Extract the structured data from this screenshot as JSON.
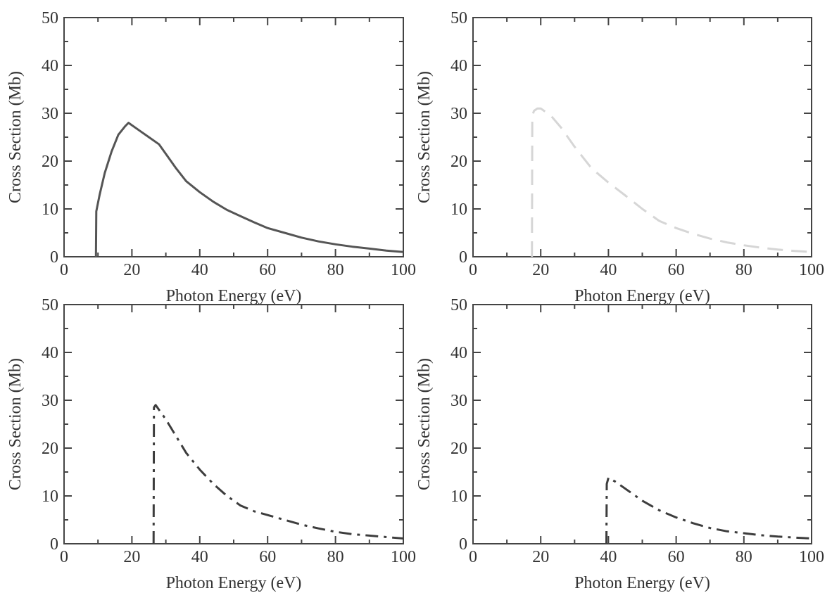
{
  "chart_data": [
    {
      "type": "line",
      "xlabel": "Photon Energy (eV)",
      "ylabel": "Cross Section (Mb)",
      "xlim": [
        0,
        100
      ],
      "ylim": [
        0,
        50
      ],
      "xticks": [
        "0",
        "20",
        "40",
        "60",
        "80",
        "100"
      ],
      "yticks": [
        "0",
        "10",
        "20",
        "30",
        "40",
        "50"
      ],
      "grid": false,
      "series": [
        {
          "line_style": "solid",
          "color": "#555555",
          "x": [
            9.4,
            9.5,
            10.5,
            12,
            14,
            16,
            18,
            19,
            22,
            25,
            28,
            30,
            33,
            36,
            40,
            44,
            48,
            52,
            56,
            60,
            65,
            70,
            75,
            80,
            85,
            90,
            95,
            100
          ],
          "y": [
            0,
            9.5,
            13,
            17.5,
            22,
            25.5,
            27.3,
            28,
            26.5,
            25,
            23.5,
            21.5,
            18.5,
            15.8,
            13.5,
            11.5,
            9.8,
            8.5,
            7.2,
            6.0,
            5.0,
            4.0,
            3.2,
            2.6,
            2.1,
            1.7,
            1.3,
            1.0
          ]
        }
      ]
    },
    {
      "type": "line",
      "xlabel": "Photon Energy (eV)",
      "ylabel": "Cross Section (Mb)",
      "xlim": [
        0,
        100
      ],
      "ylim": [
        0,
        50
      ],
      "xticks": [
        "0",
        "20",
        "40",
        "60",
        "80",
        "100"
      ],
      "yticks": [
        "0",
        "10",
        "20",
        "30",
        "40",
        "50"
      ],
      "grid": false,
      "series": [
        {
          "line_style": "dashed",
          "color": "#d6d6d6",
          "x": [
            17.4,
            17.5,
            18,
            19,
            20,
            21,
            23,
            26,
            30,
            35,
            40,
            45,
            50,
            55,
            60,
            65,
            70,
            75,
            80,
            85,
            90,
            95,
            100
          ],
          "y": [
            0,
            29.5,
            30.5,
            31,
            31,
            30.5,
            29.5,
            27,
            23,
            18.5,
            15.5,
            12.8,
            10.0,
            7.5,
            6.0,
            4.8,
            3.8,
            3.0,
            2.4,
            1.9,
            1.5,
            1.2,
            1.0
          ]
        }
      ]
    },
    {
      "type": "line",
      "xlabel": "Photon Energy (eV)",
      "ylabel": "Cross Section (Mb)",
      "xlim": [
        0,
        100
      ],
      "ylim": [
        0,
        50
      ],
      "xticks": [
        "0",
        "20",
        "40",
        "60",
        "80",
        "100"
      ],
      "yticks": [
        "0",
        "10",
        "20",
        "30",
        "40",
        "50"
      ],
      "grid": false,
      "series": [
        {
          "line_style": "dash-dot",
          "color": "#3d3d3d",
          "x": [
            26.4,
            26.5,
            27,
            30,
            33,
            36,
            40,
            44,
            48,
            52,
            56,
            60,
            65,
            70,
            75,
            80,
            85,
            90,
            95,
            100
          ],
          "y": [
            0,
            28.5,
            29,
            26,
            22.5,
            19,
            15.5,
            12.5,
            10.0,
            8.0,
            6.8,
            6.0,
            5.0,
            4.0,
            3.2,
            2.5,
            2.0,
            1.7,
            1.4,
            1.1
          ]
        }
      ]
    },
    {
      "type": "line",
      "xlabel": "Photon Energy (eV)",
      "ylabel": "Cross Section (Mb)",
      "xlim": [
        0,
        100
      ],
      "ylim": [
        0,
        50
      ],
      "xticks": [
        "0",
        "20",
        "40",
        "60",
        "80",
        "100"
      ],
      "yticks": [
        "0",
        "10",
        "20",
        "30",
        "40",
        "50"
      ],
      "grid": false,
      "series": [
        {
          "line_style": "dash-dot",
          "color": "#3d3d3d",
          "x": [
            39.4,
            39.5,
            40,
            42,
            45,
            50,
            55,
            60,
            65,
            70,
            75,
            80,
            85,
            90,
            95,
            100
          ],
          "y": [
            0,
            12.5,
            13.8,
            13,
            11.5,
            9.0,
            7.0,
            5.5,
            4.3,
            3.3,
            2.6,
            2.2,
            1.8,
            1.5,
            1.3,
            1.1
          ]
        }
      ]
    }
  ]
}
